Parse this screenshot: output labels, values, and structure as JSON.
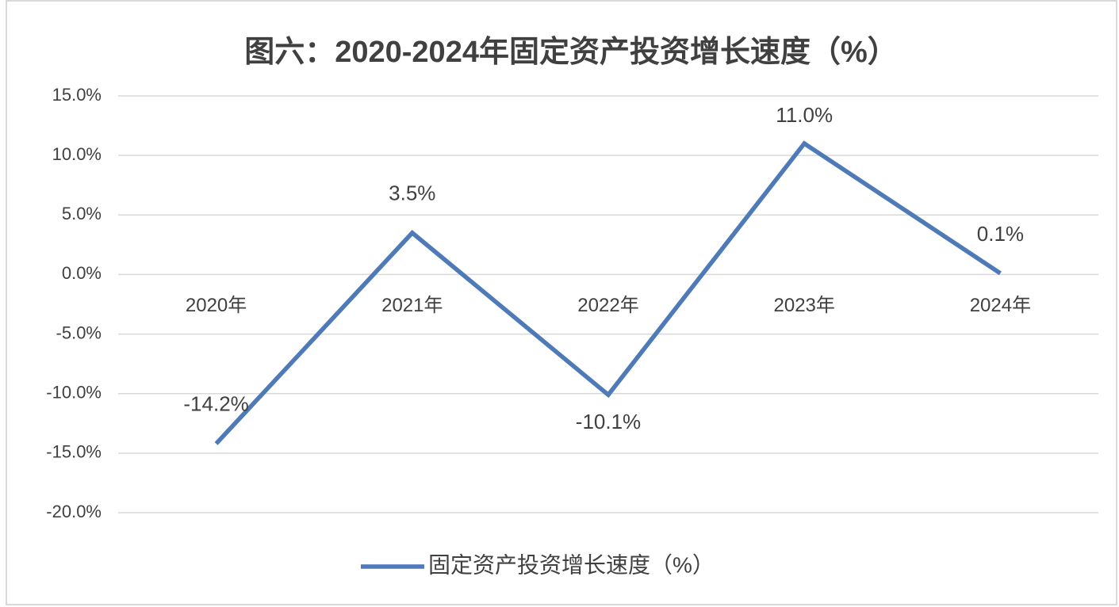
{
  "chart_data": {
    "type": "line",
    "title": "图六：2020-2024年固定资产投资增长速度（%）",
    "categories": [
      "2020年",
      "2021年",
      "2022年",
      "2023年",
      "2024年"
    ],
    "series": [
      {
        "name": "固定资产投资增长速度（%）",
        "color": "#4e7ab8",
        "values": [
          -14.2,
          3.5,
          -10.1,
          11.0,
          0.1
        ],
        "value_labels": [
          "-14.2%",
          "3.5%",
          "-10.1%",
          "11.0%",
          "0.1%"
        ]
      }
    ],
    "ylim": [
      -20,
      15
    ],
    "yticks": [
      {
        "value": -20,
        "label": "-20.0%"
      },
      {
        "value": -15,
        "label": "-15.0%"
      },
      {
        "value": -10,
        "label": "-10.0%"
      },
      {
        "value": -5,
        "label": "-5.0%"
      },
      {
        "value": 0,
        "label": "0.0%"
      },
      {
        "value": 5,
        "label": "5.0%"
      },
      {
        "value": 10,
        "label": "10.0%"
      },
      {
        "value": 15,
        "label": "15.0%"
      }
    ],
    "grid": true,
    "legend": "bottom"
  }
}
